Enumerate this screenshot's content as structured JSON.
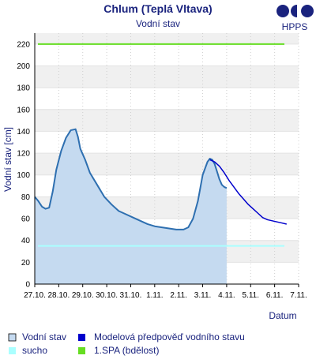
{
  "chart_data": {
    "type": "area",
    "title": "Chlum (Teplá Vltava)",
    "subtitle": "Vodní stav",
    "ylabel": "Vodní stav [cm]",
    "xlabel": "Datum",
    "ylim": [
      0,
      230
    ],
    "yticks": [
      0,
      20,
      40,
      60,
      80,
      100,
      120,
      140,
      160,
      180,
      200,
      220
    ],
    "xtick_labels": [
      "27.10.",
      "28.10.",
      "29.10.",
      "30.10.",
      "31.10.",
      "1.11.",
      "2.11.",
      "3.11.",
      "4.11.",
      "5.11.",
      "6.11.",
      "7.11."
    ],
    "x_start": "27.10.",
    "x_end": "7.11.",
    "grid": true,
    "legend_position": "bottom",
    "series": [
      {
        "name": "Vodní stav",
        "kind": "area",
        "color": "#2e6fb0",
        "fill": "#c5daf0",
        "x": [
          0.0,
          0.15,
          0.3,
          0.45,
          0.6,
          0.75,
          0.9,
          1.1,
          1.3,
          1.5,
          1.7,
          1.8,
          1.9,
          2.1,
          2.3,
          2.6,
          2.9,
          3.2,
          3.5,
          3.8,
          4.1,
          4.4,
          4.7,
          5.0,
          5.3,
          5.6,
          5.9,
          6.2,
          6.4,
          6.6,
          6.8,
          7.0,
          7.2,
          7.3,
          7.4,
          7.5,
          7.6,
          7.7,
          7.8,
          7.9,
          8.0
        ],
        "y": [
          80,
          76,
          71,
          69,
          70,
          85,
          105,
          122,
          134,
          141,
          142,
          135,
          124,
          114,
          102,
          91,
          80,
          73,
          67,
          64,
          61,
          58,
          55,
          53,
          52,
          51,
          50,
          50,
          52,
          60,
          76,
          100,
          112,
          115,
          114,
          110,
          103,
          96,
          91,
          89,
          88
        ]
      },
      {
        "name": "Modelová předpověď vodního stavu",
        "kind": "line",
        "color": "#0000cc",
        "x": [
          7.3,
          7.5,
          7.7,
          7.9,
          8.1,
          8.3,
          8.5,
          8.7,
          8.9,
          9.1,
          9.3,
          9.5,
          9.7,
          9.9,
          10.1,
          10.3,
          10.5
        ],
        "y": [
          114,
          112,
          108,
          102,
          95,
          89,
          83,
          78,
          73,
          69,
          65,
          61,
          59,
          58,
          57,
          56,
          55
        ]
      },
      {
        "name": "sucho",
        "kind": "hline",
        "color": "#aaffff",
        "value": 35
      },
      {
        "name": "1.SPA (bdělost)",
        "kind": "hline",
        "color": "#66dd22",
        "value": 220
      }
    ]
  },
  "logo": {
    "text": "HPPS",
    "color": "#1a237e"
  }
}
